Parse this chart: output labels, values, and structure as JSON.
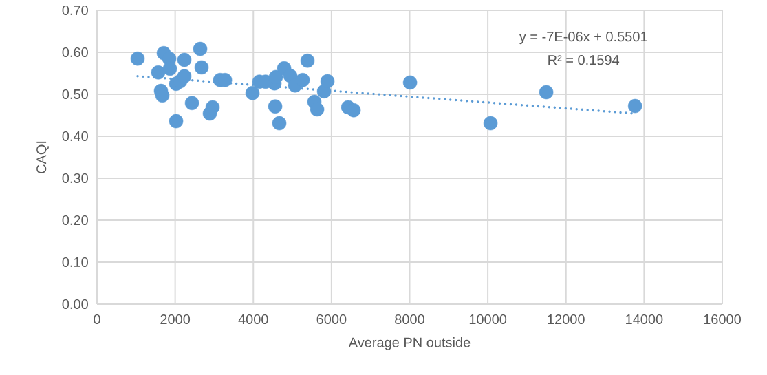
{
  "chart_data": {
    "type": "scatter",
    "xlabel": "Average PN outside",
    "ylabel": "CAQI",
    "xlim": [
      0,
      16000
    ],
    "xticks": [
      0,
      2000,
      4000,
      6000,
      8000,
      10000,
      12000,
      14000,
      16000
    ],
    "ylim": [
      0,
      0.7
    ],
    "yticks": [
      {
        "value": 0,
        "label": "0.00"
      },
      {
        "value": 0.1,
        "label": "0.10"
      },
      {
        "value": 0.2,
        "label": "0.20"
      },
      {
        "value": 0.3,
        "label": "0.30"
      },
      {
        "value": 0.4,
        "label": "0.40"
      },
      {
        "value": 0.5,
        "label": "0.50"
      },
      {
        "value": 0.6,
        "label": "0.60"
      },
      {
        "value": 0.7,
        "label": "0.70"
      }
    ],
    "grid": true,
    "annotations": [
      "y = -7E-06x + 0.5501",
      "R² = 0.1594"
    ],
    "series": [
      {
        "color": "#5b9bd5",
        "marker": "circle",
        "x": [
          1039,
          1567,
          1708,
          1849,
          1866,
          1637,
          1673,
          2025,
          2130,
          2236,
          2236,
          2025,
          2430,
          2641,
          2676,
          2887,
          2958,
          3151,
          3275,
          3979,
          4155,
          4313,
          4542,
          4577,
          4560,
          4665,
          4789,
          4947,
          5070,
          5264,
          5387,
          5563,
          5634,
          5810,
          5898,
          6426,
          6567,
          8011,
          10070,
          11496,
          13768
        ],
        "values": [
          0.585,
          0.552,
          0.598,
          0.585,
          0.561,
          0.508,
          0.497,
          0.525,
          0.531,
          0.543,
          0.582,
          0.436,
          0.479,
          0.608,
          0.564,
          0.454,
          0.469,
          0.534,
          0.534,
          0.503,
          0.53,
          0.53,
          0.526,
          0.541,
          0.471,
          0.431,
          0.562,
          0.544,
          0.521,
          0.534,
          0.58,
          0.482,
          0.464,
          0.507,
          0.531,
          0.469,
          0.462,
          0.528,
          0.431,
          0.505,
          0.472
        ]
      },
      {
        "type": "line",
        "color": "#5b9bd5",
        "line_style": "dotted",
        "marker": "none",
        "x": [
          1039,
          13768
        ],
        "values": [
          0.543,
          0.454
        ]
      }
    ]
  }
}
